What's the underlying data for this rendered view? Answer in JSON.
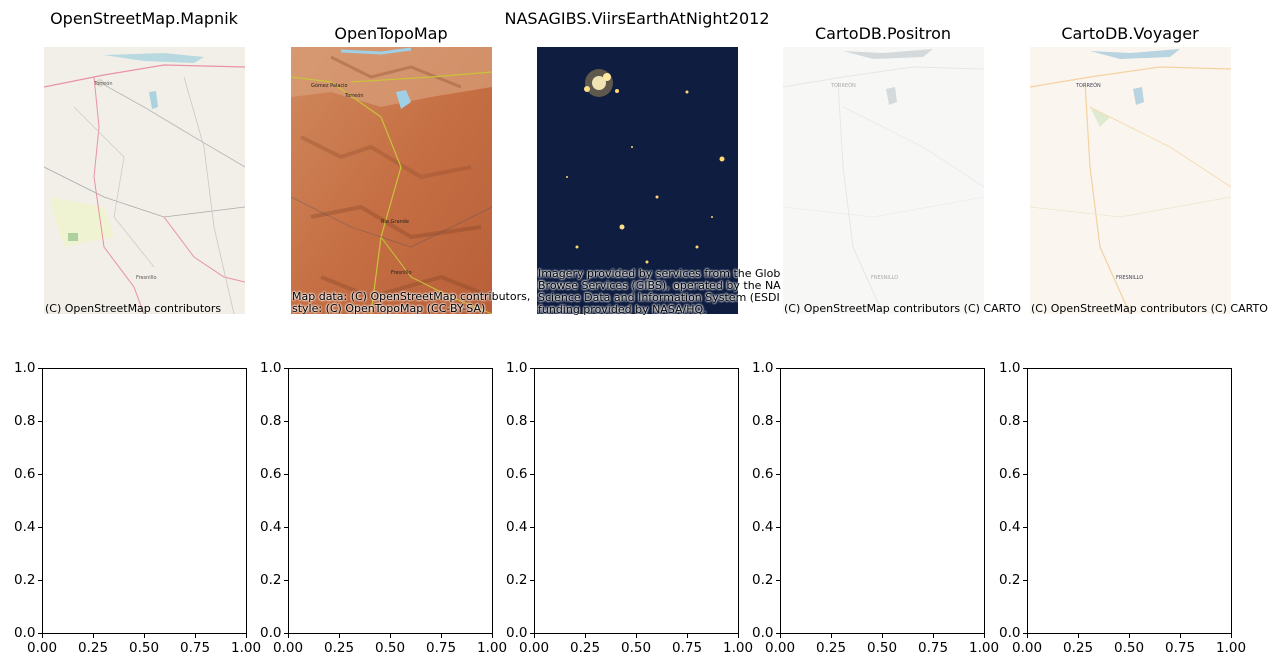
{
  "chart_data": [
    {
      "type": "map",
      "title": "OpenStreetMap.Mapnik",
      "attribution": "(C) OpenStreetMap contributors",
      "place_labels": [
        "Torreón",
        "Fresnillo"
      ],
      "background": "#f2efe9"
    },
    {
      "type": "map",
      "title": "OpenTopoMap",
      "attribution": "Map data: (C) OpenStreetMap contributors,\nstyle: (C) OpenTopoMap (CC-BY-SA)",
      "place_labels": [
        "Gómez Palacio",
        "Torreón",
        "Río Grande",
        "Fresnillo"
      ],
      "background": "#c8744a"
    },
    {
      "type": "map",
      "title": "NASAGIBS.ViirsEarthAtNight2012",
      "attribution": "Imagery provided by services from the Glob\nBrowse Services (GIBS), operated by the NA\nScience Data and Information System (ESDI\nfunding provided by NASA/HQ.",
      "place_labels": [],
      "background": "#0c1838"
    },
    {
      "type": "map",
      "title": "CartoDB.Positron",
      "attribution": "(C) OpenStreetMap contributors (C) CARTO",
      "place_labels": [
        "TORREÓN",
        "FRESNILLO"
      ],
      "background": "#f7f7f5"
    },
    {
      "type": "map",
      "title": "CartoDB.Voyager",
      "attribution": "(C) OpenStreetMap contributors (C) CARTO",
      "place_labels": [
        "TORREÓN",
        "FRESNILLO"
      ],
      "background": "#faf6ef"
    },
    {
      "type": "empty",
      "title": "",
      "xlim": [
        0,
        1
      ],
      "ylim": [
        0,
        1
      ],
      "xticks": [
        "0.00",
        "0.25",
        "0.50",
        "0.75",
        "1.00"
      ],
      "yticks": [
        "0.0",
        "0.2",
        "0.4",
        "0.6",
        "0.8",
        "1.0"
      ]
    },
    {
      "type": "empty",
      "title": "",
      "xlim": [
        0,
        1
      ],
      "ylim": [
        0,
        1
      ],
      "xticks": [
        "0.00",
        "0.25",
        "0.50",
        "0.75",
        "1.00"
      ],
      "yticks": [
        "0.0",
        "0.2",
        "0.4",
        "0.6",
        "0.8",
        "1.0"
      ]
    },
    {
      "type": "empty",
      "title": "",
      "xlim": [
        0,
        1
      ],
      "ylim": [
        0,
        1
      ],
      "xticks": [
        "0.00",
        "0.25",
        "0.50",
        "0.75",
        "1.00"
      ],
      "yticks": [
        "0.0",
        "0.2",
        "0.4",
        "0.6",
        "0.8",
        "1.0"
      ]
    },
    {
      "type": "empty",
      "title": "",
      "xlim": [
        0,
        1
      ],
      "ylim": [
        0,
        1
      ],
      "xticks": [
        "0.00",
        "0.25",
        "0.50",
        "0.75",
        "1.00"
      ],
      "yticks": [
        "0.0",
        "0.2",
        "0.4",
        "0.6",
        "0.8",
        "1.0"
      ]
    },
    {
      "type": "empty",
      "title": "",
      "xlim": [
        0,
        1
      ],
      "ylim": [
        0,
        1
      ],
      "xticks": [
        "0.00",
        "0.25",
        "0.50",
        "0.75",
        "1.00"
      ],
      "yticks": [
        "0.0",
        "0.2",
        "0.4",
        "0.6",
        "0.8",
        "1.0"
      ]
    }
  ]
}
